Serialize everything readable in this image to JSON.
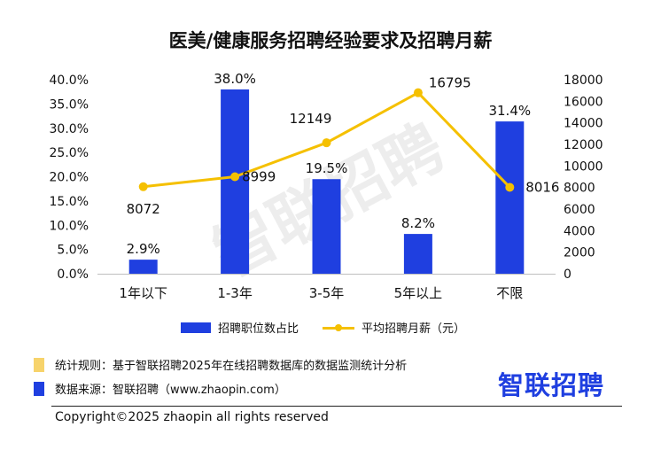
{
  "title": "医美/健康服务招聘经验要求及招聘月薪",
  "watermark": "智联招聘",
  "colors": {
    "bar": "#1f3fe0",
    "line": "#f5c000",
    "note_rule": "#f7d36b",
    "note_source": "#1f3fe0",
    "logo": "#1f3fe0"
  },
  "chart_data": {
    "type": "bar",
    "title": "医美/健康服务招聘经验要求及招聘月薪",
    "categories": [
      "1年以下",
      "1-3年",
      "3-5年",
      "5年以上",
      "不限"
    ],
    "series": [
      {
        "name": "招聘职位数占比",
        "type": "bar",
        "axis": "left",
        "values": [
          2.9,
          38.0,
          19.5,
          8.2,
          31.4
        ],
        "labels": [
          "2.9%",
          "38.0%",
          "19.5%",
          "8.2%",
          "31.4%"
        ]
      },
      {
        "name": "平均招聘月薪（元）",
        "type": "line",
        "axis": "right",
        "values": [
          8072,
          8999,
          12149,
          16795,
          8016
        ],
        "labels": [
          "8072",
          "8999",
          "12149",
          "16795",
          "8016"
        ]
      }
    ],
    "y_left": {
      "min": 0,
      "max": 40,
      "ticks": [
        "0.0%",
        "5.0%",
        "10.0%",
        "15.0%",
        "20.0%",
        "25.0%",
        "30.0%",
        "35.0%",
        "40.0%"
      ]
    },
    "y_right": {
      "min": 0,
      "max": 18000,
      "ticks": [
        "0",
        "2000",
        "4000",
        "6000",
        "8000",
        "10000",
        "12000",
        "14000",
        "16000",
        "18000"
      ]
    },
    "grid": false,
    "legend_position": "bottom"
  },
  "notes": {
    "rule": "统计规则：基于智联招聘2025年在线招聘数据库的数据监测统计分析",
    "source": "数据来源：智联招聘（www.zhaopin.com）"
  },
  "logo": "智联招聘",
  "copyright": "Copyright©2025 zhaopin all rights reserved"
}
